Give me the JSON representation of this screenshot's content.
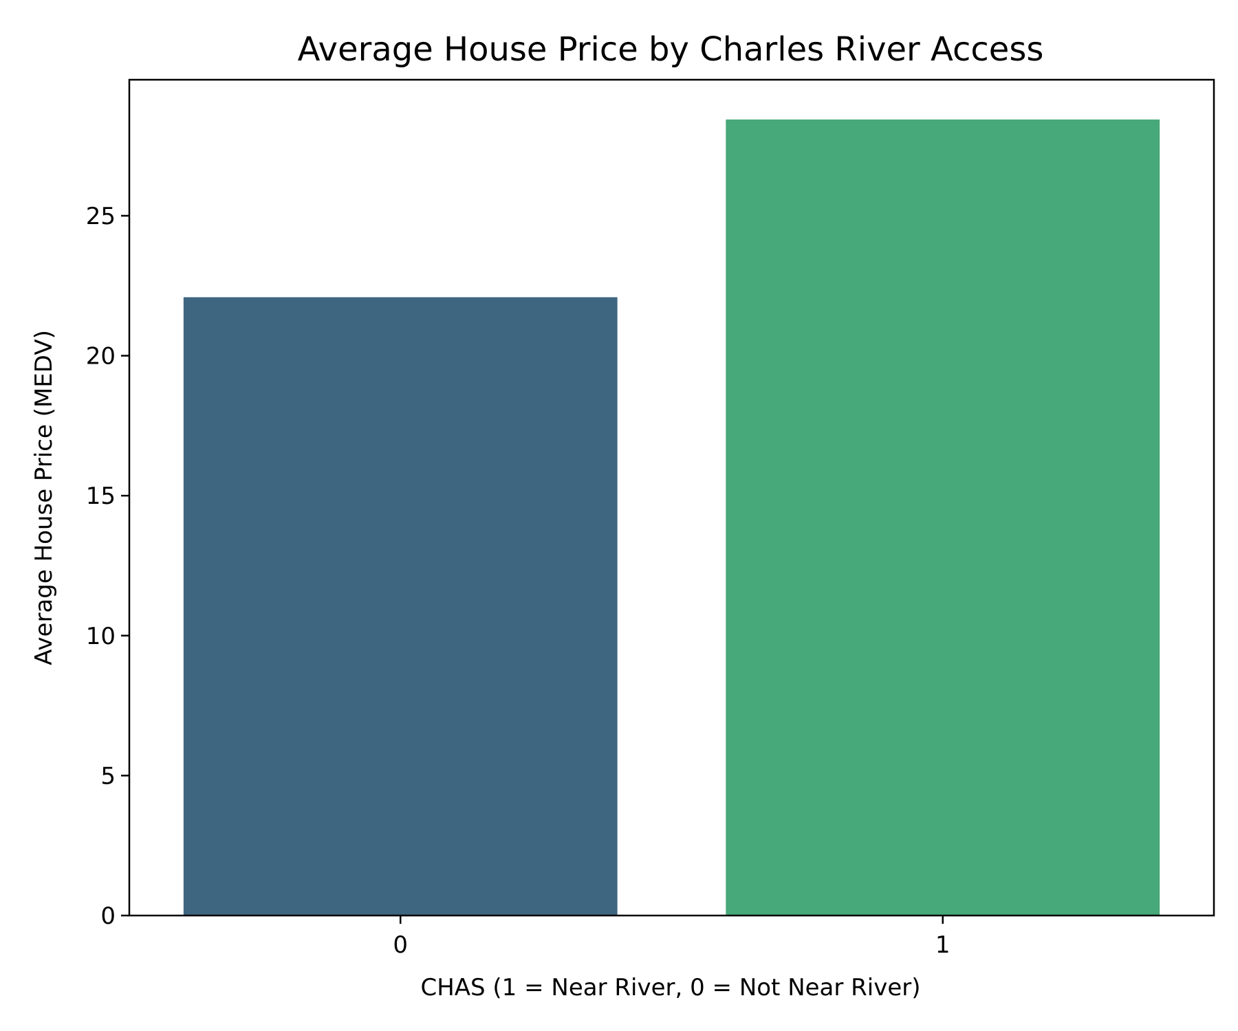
{
  "chart_data": {
    "type": "bar",
    "title": "Average House Price by Charles River Access",
    "xlabel": "CHAS (1 = Near River, 0 = Not Near River)",
    "ylabel": "Average House Price (MEDV)",
    "categories": [
      "0",
      "1"
    ],
    "values": [
      22.09,
      28.44
    ],
    "colors": [
      "#3f6681",
      "#47a879"
    ],
    "ylim": [
      0,
      29.86
    ],
    "yticks": [
      0,
      5,
      10,
      15,
      20,
      25
    ],
    "grid": false,
    "legend": "none"
  }
}
